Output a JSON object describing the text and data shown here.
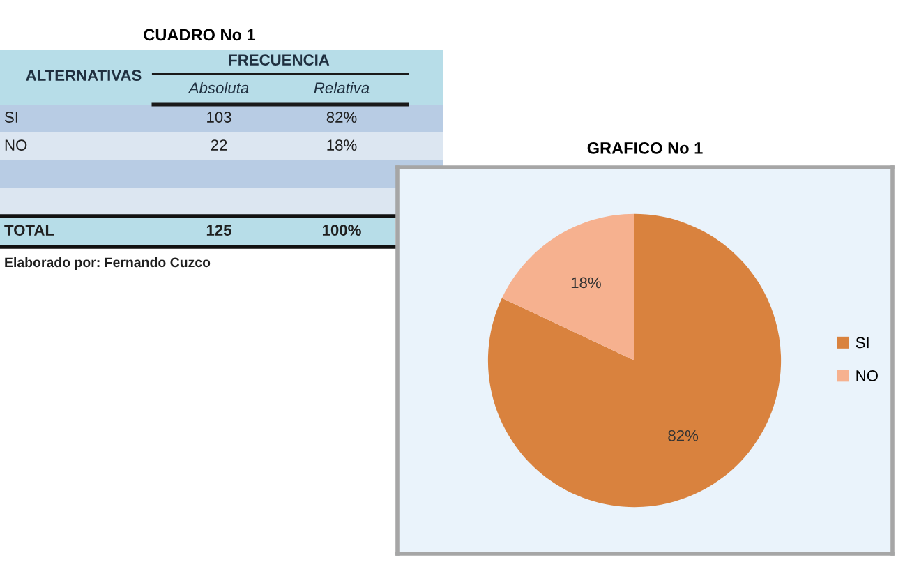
{
  "chart_data": [
    {
      "type": "other",
      "title": "CUADRO No 1",
      "ylabel": "ALTERNATIVAS",
      "legend_title": "FRECUENCIA",
      "categories": [
        "SI",
        "NO",
        null,
        null,
        "TOTAL"
      ],
      "series": [
        {
          "name": "Absoluta",
          "colors": [
            "#b8cce4",
            "#dce6f1",
            "#b8cce4",
            "#dce6f1",
            "#b7dde8"
          ],
          "values": [
            103,
            22,
            null,
            null,
            125
          ]
        },
        {
          "name": "Relativa",
          "colors": [
            "#b8cce4",
            "#dce6f1",
            "#b8cce4",
            "#dce6f1",
            "#b7dde8"
          ],
          "values": [
            82,
            18,
            null,
            null,
            100
          ],
          "value_labels": [
            "82%",
            "18%",
            null,
            null,
            "100%"
          ]
        }
      ],
      "data_labels": true,
      "annotations": [
        "Elaborado por: Fernando Cuzco"
      ]
    },
    {
      "type": "pie",
      "title": "GRAFICO No 1",
      "categories": [
        "SI",
        "NO"
      ],
      "values": [
        82,
        18
      ],
      "colors": [
        "#d9823e",
        "#f6b18f"
      ],
      "value_labels": [
        "82%",
        "18%"
      ],
      "legend": "right"
    }
  ]
}
